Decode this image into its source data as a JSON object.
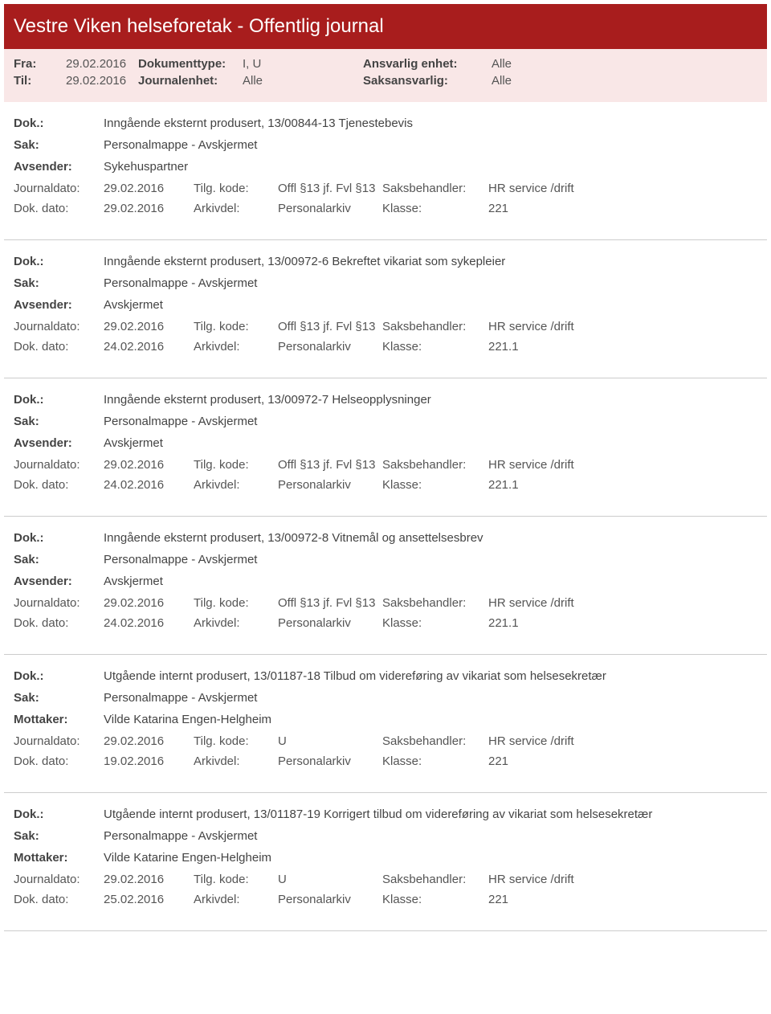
{
  "colors": {
    "header_bg": "#a81d1d",
    "header_text": "#ffffff",
    "filter_bg": "#f9e7e7",
    "text": "#444444",
    "border": "#cccccc"
  },
  "header": {
    "title": "Vestre Viken helseforetak - Offentlig journal"
  },
  "filters": {
    "fra_label": "Fra:",
    "fra": "29.02.2016",
    "til_label": "Til:",
    "til": "29.02.2016",
    "doktype_label": "Dokumenttype:",
    "doktype": "I, U",
    "journalenhet_label": "Journalenhet:",
    "journalenhet": "Alle",
    "ansvarlig_label": "Ansvarlig enhet:",
    "ansvarlig": "Alle",
    "saksansvarlig_label": "Saksansvarlig:",
    "saksansvarlig": "Alle"
  },
  "labels": {
    "dok": "Dok.:",
    "sak": "Sak:",
    "avsender": "Avsender:",
    "mottaker": "Mottaker:",
    "journaldato": "Journaldato:",
    "dokdato": "Dok. dato:",
    "tilgkode": "Tilg. kode:",
    "arkivdel": "Arkivdel:",
    "saksbehandler": "Saksbehandler:",
    "klasse": "Klasse:"
  },
  "entries": [
    {
      "dok": "Inngående eksternt produsert, 13/00844-13 Tjenestebevis",
      "sak": "Personalmappe - Avskjermet",
      "party_label": "Avsender:",
      "party": "Sykehuspartner",
      "journaldato": "29.02.2016",
      "dokdato": "29.02.2016",
      "tilgkode": "Offl §13 jf. Fvl §13",
      "arkivdel": "Personalarkiv",
      "saksbehandler": "HR service /drift",
      "klasse": "221"
    },
    {
      "dok": "Inngående eksternt produsert, 13/00972-6 Bekreftet vikariat som sykepleier",
      "sak": "Personalmappe - Avskjermet",
      "party_label": "Avsender:",
      "party": "Avskjermet",
      "journaldato": "29.02.2016",
      "dokdato": "24.02.2016",
      "tilgkode": "Offl §13 jf. Fvl §13",
      "arkivdel": "Personalarkiv",
      "saksbehandler": "HR service /drift",
      "klasse": "221.1"
    },
    {
      "dok": "Inngående eksternt produsert, 13/00972-7 Helseopplysninger",
      "sak": "Personalmappe - Avskjermet",
      "party_label": "Avsender:",
      "party": "Avskjermet",
      "journaldato": "29.02.2016",
      "dokdato": "24.02.2016",
      "tilgkode": "Offl §13 jf. Fvl §13",
      "arkivdel": "Personalarkiv",
      "saksbehandler": "HR service /drift",
      "klasse": "221.1"
    },
    {
      "dok": "Inngående eksternt produsert, 13/00972-8 Vitnemål og ansettelsesbrev",
      "sak": "Personalmappe - Avskjermet",
      "party_label": "Avsender:",
      "party": "Avskjermet",
      "journaldato": "29.02.2016",
      "dokdato": "24.02.2016",
      "tilgkode": "Offl §13 jf. Fvl §13",
      "arkivdel": "Personalarkiv",
      "saksbehandler": "HR service /drift",
      "klasse": "221.1"
    },
    {
      "dok": "Utgående internt produsert, 13/01187-18 Tilbud om videreføring av vikariat som helsesekretær",
      "sak": "Personalmappe - Avskjermet",
      "party_label": "Mottaker:",
      "party": "Vilde Katarina Engen-Helgheim",
      "journaldato": "29.02.2016",
      "dokdato": "19.02.2016",
      "tilgkode": "U",
      "arkivdel": "Personalarkiv",
      "saksbehandler": "HR service /drift",
      "klasse": "221"
    },
    {
      "dok": "Utgående internt produsert, 13/01187-19 Korrigert tilbud om videreføring av vikariat som helsesekretær",
      "sak": "Personalmappe - Avskjermet",
      "party_label": "Mottaker:",
      "party": "Vilde Katarine Engen-Helgheim",
      "journaldato": "29.02.2016",
      "dokdato": "25.02.2016",
      "tilgkode": "U",
      "arkivdel": "Personalarkiv",
      "saksbehandler": "HR service /drift",
      "klasse": "221"
    }
  ]
}
